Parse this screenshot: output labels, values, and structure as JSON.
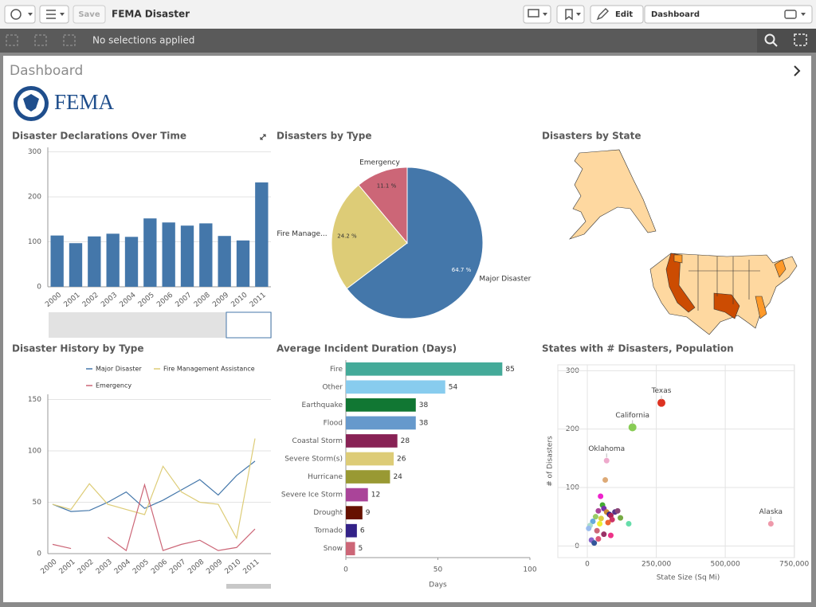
{
  "toolbar": {
    "save": "Save",
    "app_title": "FEMA Disaster",
    "edit": "Edit",
    "sheet_selector": "Dashboard"
  },
  "selection_bar": {
    "status": "No selections applied"
  },
  "sheet": {
    "title": "Dashboard",
    "logo_text": "FEMA",
    "map_title": "Disasters by State"
  },
  "chart_data": [
    {
      "type": "bar",
      "title": "Disaster Declarations Over Time",
      "categories": [
        "2000",
        "2001",
        "2002",
        "2003",
        "2004",
        "2005",
        "2006",
        "2007",
        "2008",
        "2009",
        "2010",
        "2011"
      ],
      "values": [
        114,
        97,
        112,
        118,
        111,
        152,
        143,
        136,
        141,
        113,
        103,
        232
      ],
      "color": "#4477aa",
      "ylim": [
        0,
        310
      ],
      "yticks": [
        0,
        100,
        200,
        300
      ],
      "grid": true
    },
    {
      "type": "pie",
      "title": "Disasters by Type",
      "categories": [
        "Major Disaster",
        "Fire Manage...",
        "Emergency"
      ],
      "values": [
        64.7,
        24.2,
        11.1
      ],
      "value_labels": [
        "64.7 %",
        "24.2 %",
        "11.1 %"
      ],
      "colors": [
        "#4477aa",
        "#ddcc77",
        "#cc6677"
      ]
    },
    {
      "type": "line",
      "title": "Disaster History by Type",
      "categories": [
        "2000",
        "2001",
        "2002",
        "2003",
        "2004",
        "2005",
        "2006",
        "2007",
        "2008",
        "2009",
        "2010",
        "2011"
      ],
      "series": [
        {
          "name": "Major Disaster",
          "color": "#4477aa",
          "values": [
            48,
            41,
            42,
            50,
            60,
            44,
            52,
            62,
            72,
            57,
            76,
            90
          ]
        },
        {
          "name": "Fire Management Assistance",
          "color": "#ddcc77",
          "values": [
            48,
            43,
            68,
            48,
            43,
            38,
            85,
            60,
            50,
            48,
            15,
            112
          ]
        },
        {
          "name": "Emergency",
          "color": "#cc6677",
          "values": [
            9,
            5,
            null,
            16,
            3,
            67,
            3,
            9,
            13,
            3,
            6,
            24
          ]
        }
      ],
      "ylim": [
        0,
        155
      ],
      "yticks": [
        0,
        50,
        100,
        150
      ],
      "grid": true
    },
    {
      "type": "hbar",
      "title": "Average Incident Duration (Days)",
      "categories": [
        "Fire",
        "Other",
        "Earthquake",
        "Flood",
        "Coastal Storm",
        "Severe Storm(s)",
        "Hurricane",
        "Severe Ice Storm",
        "Drought",
        "Tornado",
        "Snow"
      ],
      "values": [
        85,
        54,
        38,
        38,
        28,
        26,
        24,
        12,
        9,
        6,
        5
      ],
      "colors": [
        "#44aa99",
        "#88ccee",
        "#117733",
        "#6699cc",
        "#882255",
        "#ddcc77",
        "#999933",
        "#aa4499",
        "#661100",
        "#332288",
        "#cc6677"
      ],
      "xlim": [
        0,
        100
      ],
      "xticks": [
        0,
        50,
        100
      ],
      "xlabel": "Days"
    },
    {
      "type": "scatter",
      "title": "States with # Disasters, Population",
      "x": [
        268597,
        163696,
        69899,
        665384,
        65000,
        48000,
        55000,
        60000,
        40000,
        70000,
        100000,
        80000,
        85000,
        30000,
        50000,
        110000,
        90000,
        20000,
        75000,
        45000,
        150000,
        10000,
        5000,
        35000,
        60000,
        85000,
        15000,
        40000,
        25000,
        120000
      ],
      "y": [
        245,
        203,
        146,
        38,
        113,
        85,
        70,
        64,
        60,
        58,
        58,
        54,
        52,
        50,
        47,
        60,
        45,
        42,
        40,
        38,
        38,
        35,
        30,
        26,
        20,
        18,
        10,
        12,
        5,
        48
      ],
      "labels": [
        "Texas",
        "California",
        "Oklahoma",
        "Alaska",
        null,
        null,
        null,
        null,
        null,
        null,
        null,
        null,
        null,
        null,
        null,
        null,
        null,
        null,
        null,
        null,
        null,
        null,
        null,
        null,
        null,
        null,
        null,
        null,
        null,
        null
      ],
      "colors": [
        "#dd3322",
        "#88cc55",
        "#eeaacc",
        "#ee99aa",
        "#ddaa77",
        "#ee22cc",
        "#44aa33",
        "#7733aa",
        "#aa4499",
        "#cc8833",
        "#553388",
        "#332288",
        "#aa2255",
        "#99cc66",
        "#ddcc44",
        "#884477",
        "#cc3366",
        "#66aadd",
        "#ee6633",
        "#eeee33",
        "#66ddaa",
        "#aaddcc",
        "#99bbee",
        "#cc6677",
        "#993366",
        "#ee3388",
        "#8866cc",
        "#dd5577",
        "#335599",
        "#77aa44"
      ],
      "xlim": [
        -107000,
        751000
      ],
      "xticks": [
        0,
        {
          "value": 250000,
          "label": "250,000"
        },
        {
          "value": 500000,
          "label": "500,000"
        },
        {
          "value": 750000,
          "label": "750,000"
        }
      ],
      "ylim": [
        -20,
        310
      ],
      "yticks": [
        0,
        100,
        200,
        300
      ],
      "xlabel": "State Size (Sq Mi)",
      "ylabel": "# of Disasters",
      "grid": true
    }
  ]
}
